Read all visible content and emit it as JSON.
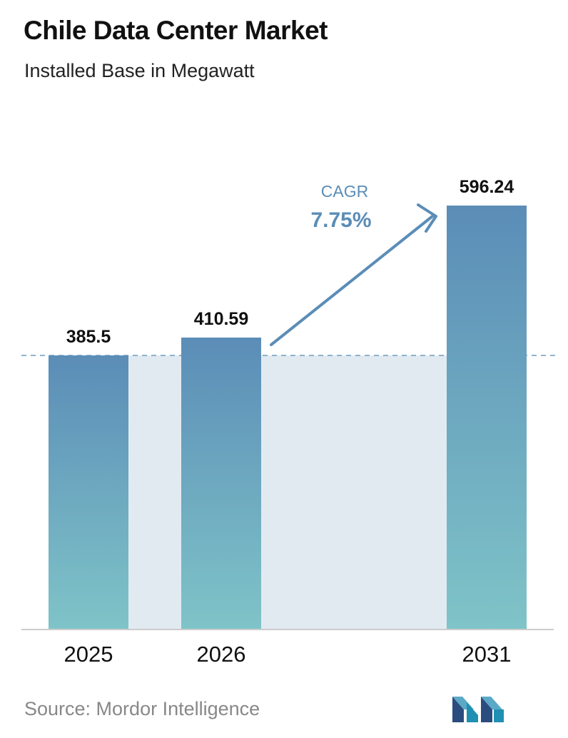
{
  "header": {
    "title": "Chile Data Center Market",
    "subtitle": "Installed Base in Megawatt"
  },
  "chart_data": {
    "type": "bar",
    "title": "Chile Data Center Market",
    "subtitle": "Installed Base in Megawatt",
    "categories": [
      "2025",
      "2026",
      "2031"
    ],
    "values": [
      385.5,
      410.59,
      596.24
    ],
    "value_labels": [
      "385.5",
      "410.59",
      "596.24"
    ],
    "xlabel": "",
    "ylabel": "",
    "ylim": [
      0,
      596.24
    ],
    "grid": false,
    "reference_line": {
      "style": "dashed",
      "value": 385.5
    },
    "annotation": {
      "label": "CAGR",
      "value": "7.75%"
    },
    "colors": {
      "bar_top": "#5b8db7",
      "bar_bottom": "#7fc4c8",
      "shade": "#e2eaf1",
      "arrow": "#5b8db7",
      "axis": "#cccccc",
      "dashed_line": "#6a9bbd"
    }
  },
  "footer": {
    "source": "Source:  Mordor Intelligence",
    "logo_icon": "mordor-intelligence-logo-icon"
  }
}
